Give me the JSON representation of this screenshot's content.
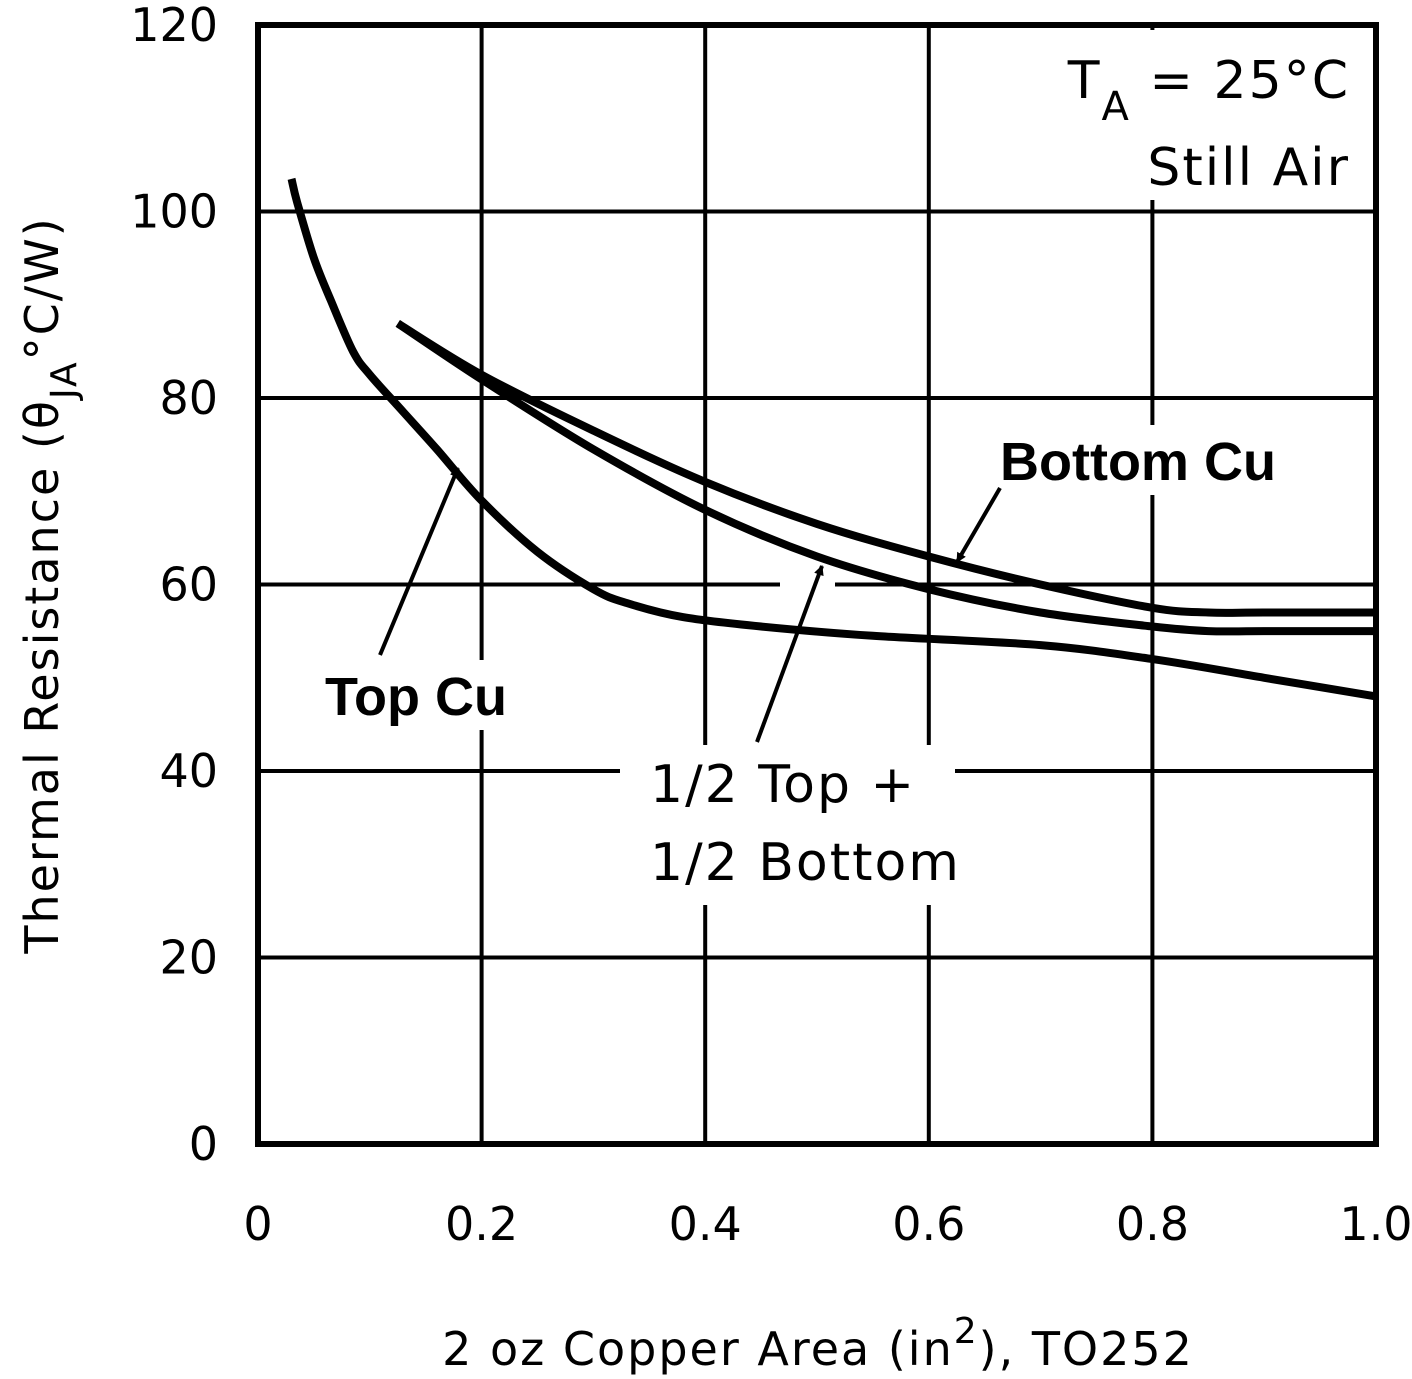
{
  "chart_data": {
    "type": "line",
    "title": "",
    "xlabel": "2 oz Copper Area (in²), TO252",
    "xlabel_parts": {
      "pre": "2 oz Copper Area (in",
      "sup": "2",
      "post": "), TO252"
    },
    "ylabel": "Thermal Resistance (θJA°C/W)",
    "ylabel_parts": {
      "pre": "Thermal Resistance (θ",
      "sub": "JA",
      "post": "°C/W)"
    },
    "xlim": [
      0,
      1.0
    ],
    "ylim": [
      0,
      120
    ],
    "x_ticks": [
      "0",
      "0.2",
      "0.4",
      "0.6",
      "0.8",
      "1.0"
    ],
    "y_ticks": [
      "0",
      "20",
      "40",
      "60",
      "80",
      "100",
      "120"
    ],
    "grid": true,
    "conditions": {
      "ta_symbol": "T",
      "ta_sub": "A",
      "ta_value": " = 25°C",
      "air": "Still Air"
    },
    "series": [
      {
        "name": "Top Cu",
        "x": [
          0.03,
          0.035,
          0.05,
          0.065,
          0.085,
          0.1,
          0.13,
          0.16,
          0.2,
          0.25,
          0.3,
          0.33,
          0.38,
          0.45,
          0.55,
          0.7,
          0.8,
          0.9,
          1.0
        ],
        "y": [
          103.5,
          101,
          95,
          90.5,
          85,
          82.5,
          78.5,
          74.5,
          69,
          63.5,
          59.5,
          58,
          56.5,
          55.5,
          54.5,
          53.5,
          52,
          50,
          48
        ]
      },
      {
        "name": "Bottom Cu",
        "x": [
          0.125,
          0.2,
          0.3,
          0.4,
          0.5,
          0.6,
          0.7,
          0.8,
          0.85,
          0.9,
          1.0
        ],
        "y": [
          88,
          82.5,
          76.5,
          71,
          66.5,
          63,
          60,
          57.5,
          57,
          57,
          57
        ]
      },
      {
        "name": "1/2 Top + 1/2 Bottom",
        "x": [
          0.125,
          0.2,
          0.3,
          0.4,
          0.5,
          0.6,
          0.7,
          0.8,
          0.85,
          0.9,
          1.0
        ],
        "y": [
          88,
          82,
          74.5,
          68,
          63,
          59.5,
          57,
          55.5,
          55,
          55,
          55
        ]
      }
    ],
    "annotations": [
      {
        "text": "Top Cu",
        "points_to_series": "Top Cu"
      },
      {
        "text": "Bottom Cu",
        "points_to_series": "Bottom Cu"
      },
      {
        "text": "1/2 Top +",
        "points_to_series": "1/2 Top + 1/2 Bottom"
      },
      {
        "text": "1/2 Bottom",
        "points_to_series": "1/2 Top + 1/2 Bottom"
      }
    ]
  }
}
